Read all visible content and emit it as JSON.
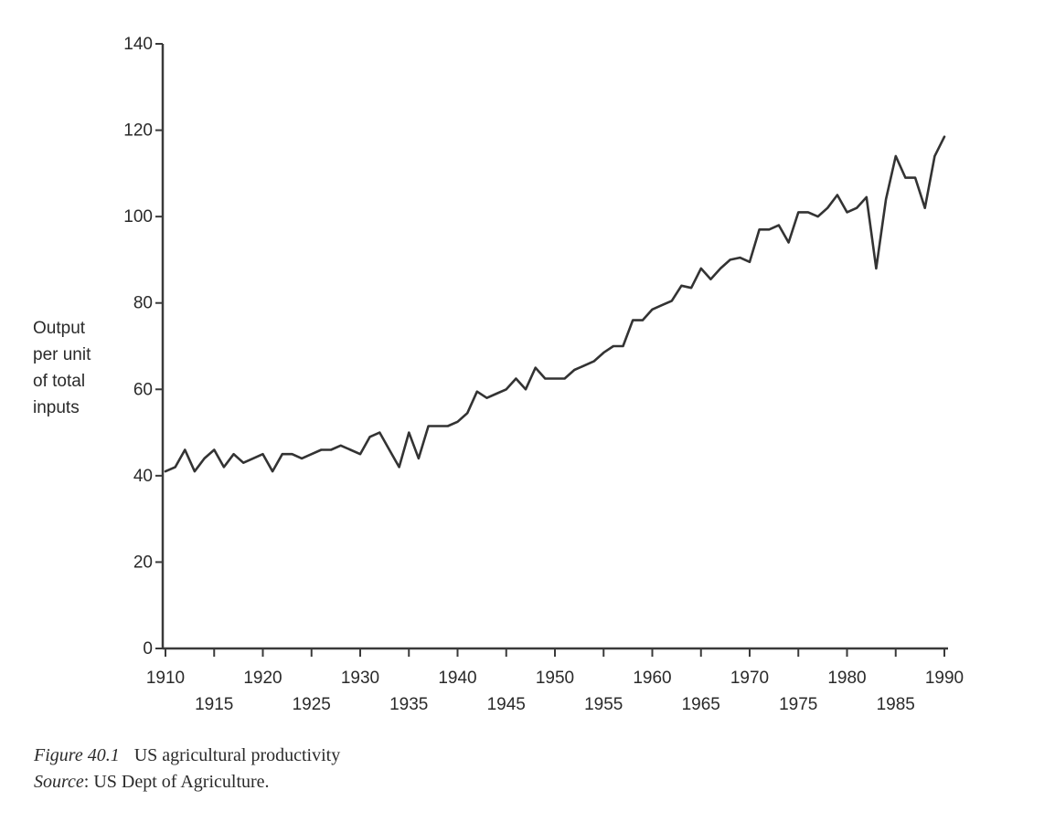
{
  "chart_data": {
    "type": "line",
    "ylabel_lines": [
      "Output",
      "per unit",
      "of total",
      "inputs"
    ],
    "xlabel": "",
    "xlim": [
      1910,
      1990
    ],
    "ylim": [
      0,
      140
    ],
    "yticks": [
      0,
      20,
      40,
      60,
      80,
      100,
      120,
      140
    ],
    "xticks_upper": [
      1910,
      1920,
      1930,
      1940,
      1950,
      1960,
      1970,
      1980,
      1990
    ],
    "xticks_lower": [
      1915,
      1925,
      1935,
      1945,
      1955,
      1965,
      1975,
      1985
    ],
    "grid": false,
    "x": [
      1910,
      1911,
      1912,
      1913,
      1914,
      1915,
      1916,
      1917,
      1918,
      1919,
      1920,
      1921,
      1922,
      1923,
      1924,
      1925,
      1926,
      1927,
      1928,
      1929,
      1930,
      1931,
      1932,
      1933,
      1934,
      1935,
      1936,
      1937,
      1938,
      1939,
      1940,
      1941,
      1942,
      1943,
      1944,
      1945,
      1946,
      1947,
      1948,
      1949,
      1950,
      1951,
      1952,
      1953,
      1954,
      1955,
      1956,
      1957,
      1958,
      1959,
      1960,
      1961,
      1962,
      1963,
      1964,
      1965,
      1966,
      1967,
      1968,
      1969,
      1970,
      1971,
      1972,
      1973,
      1974,
      1975,
      1976,
      1977,
      1978,
      1979,
      1980,
      1981,
      1982,
      1983,
      1984,
      1985,
      1986,
      1987,
      1988,
      1989,
      1990
    ],
    "y": [
      41,
      42,
      46,
      41,
      44,
      46,
      42,
      45,
      43,
      44,
      45,
      41,
      45,
      45,
      44,
      45,
      46,
      46,
      47,
      46,
      45,
      49,
      50,
      46,
      42,
      50,
      44,
      51.5,
      51.5,
      51.5,
      52.5,
      54.5,
      59.5,
      58,
      59,
      60,
      62.5,
      60,
      65,
      62.5,
      62.5,
      62.5,
      64.5,
      65.5,
      66.5,
      68.5,
      70,
      70,
      76,
      76,
      78.5,
      79.5,
      80.5,
      84,
      83.5,
      88,
      85.5,
      88,
      90,
      90.5,
      89.5,
      97,
      97,
      98,
      94,
      101,
      101,
      100,
      102,
      105,
      101,
      102,
      104.5,
      88,
      104,
      114,
      109,
      109,
      102,
      114,
      118.5
    ]
  },
  "caption": {
    "figure_number": "Figure 40.1",
    "title": "US agricultural productivity",
    "source_label": "Source",
    "source_text": ": US Dept of Agriculture."
  }
}
